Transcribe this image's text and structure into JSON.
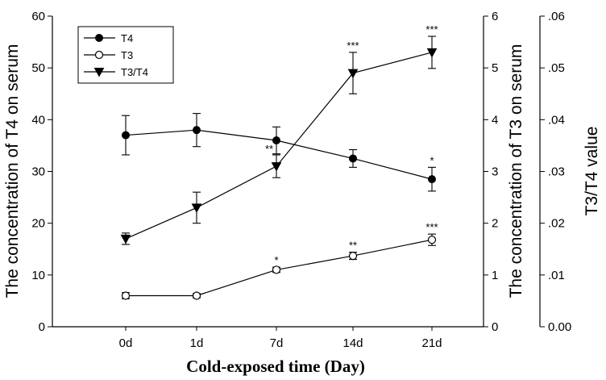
{
  "chart_data": {
    "type": "line",
    "title": "",
    "xlabel": "Cold-exposed time (Day)",
    "ylabel_left": "The concentration of T4 on serum",
    "ylabel_right1": "The concentration of T3 on serum",
    "ylabel_right2": "T3/T4 value",
    "categories": [
      "0d",
      "1d",
      "7d",
      "14d",
      "21d"
    ],
    "y_left": {
      "lim": [
        0,
        60
      ],
      "ticks": [
        "0",
        "10",
        "20",
        "30",
        "40",
        "50",
        "60"
      ]
    },
    "y_right1": {
      "lim": [
        0,
        6
      ],
      "ticks": [
        "0",
        "1",
        "2",
        "3",
        "4",
        "5",
        "6"
      ]
    },
    "y_right2": {
      "lim": [
        0,
        0.06
      ],
      "ticks": [
        "0.00",
        ".01",
        ".02",
        ".03",
        ".04",
        ".05",
        ".06"
      ]
    },
    "series": [
      {
        "name": "T4",
        "marker": "filled-circle",
        "axis": "left",
        "values": [
          37,
          38,
          36,
          32.5,
          28.5
        ],
        "errors": [
          3.8,
          3.2,
          2.6,
          1.7,
          2.3
        ],
        "significance": [
          "",
          "",
          "",
          "",
          "*"
        ]
      },
      {
        "name": "T3",
        "marker": "open-circle",
        "axis": "right1",
        "values": [
          0.6,
          0.6,
          1.1,
          1.37,
          1.68
        ],
        "errors": [
          0.06,
          0.04,
          0.05,
          0.07,
          0.11
        ],
        "significance": [
          "",
          "",
          "*",
          "**",
          "***"
        ]
      },
      {
        "name": "T3/T4",
        "marker": "filled-triangle-down",
        "axis": "right2",
        "values": [
          0.017,
          0.023,
          0.031,
          0.049,
          0.053
        ],
        "errors": [
          0.0011,
          0.003,
          0.0022,
          0.004,
          0.0031
        ],
        "significance": [
          "",
          "",
          "**",
          "***",
          "***"
        ]
      }
    ],
    "legend_position": "top-left"
  }
}
